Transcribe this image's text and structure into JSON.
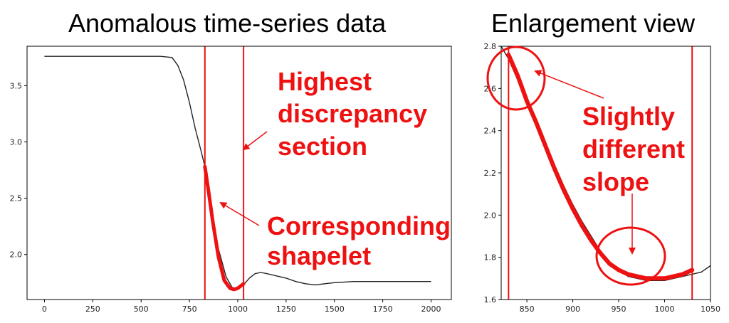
{
  "titles": {
    "left": "Anomalous time-series data",
    "right": "Enlargement view"
  },
  "annotations": {
    "left_upper": [
      "Highest",
      "discrepancy",
      "section"
    ],
    "left_lower": [
      "Corresponding",
      "shapelet"
    ],
    "right": [
      "Slightly",
      "different",
      "slope"
    ]
  },
  "colors": {
    "series": "#222222",
    "highlight": "#ee1111",
    "axis": "#000000"
  },
  "chart_data": [
    {
      "type": "line",
      "title": "Anomalous time-series data",
      "xlabel": "",
      "ylabel": "",
      "xlim": [
        -90,
        2105
      ],
      "ylim": [
        1.6,
        3.85
      ],
      "xticks": [
        0,
        250,
        500,
        750,
        1000,
        1250,
        1500,
        1750,
        2000
      ],
      "yticks": [
        2.0,
        2.5,
        3.0,
        3.5
      ],
      "grid": false,
      "vlines": [
        830,
        1030
      ],
      "series": [
        {
          "x": [
            0,
            100,
            200,
            300,
            400,
            500,
            600,
            660,
            690,
            720,
            750,
            780,
            810,
            830,
            860,
            900,
            940,
            970,
            1000,
            1030,
            1060,
            1090,
            1120,
            1150,
            1200,
            1250,
            1300,
            1350,
            1400,
            1450,
            1500,
            1600,
            1700,
            1800,
            1900,
            2000
          ],
          "y": [
            3.76,
            3.76,
            3.76,
            3.76,
            3.76,
            3.76,
            3.76,
            3.75,
            3.68,
            3.55,
            3.35,
            3.12,
            2.92,
            2.78,
            2.45,
            2.05,
            1.8,
            1.71,
            1.69,
            1.73,
            1.79,
            1.83,
            1.84,
            1.83,
            1.81,
            1.79,
            1.76,
            1.74,
            1.73,
            1.74,
            1.75,
            1.76,
            1.76,
            1.76,
            1.76,
            1.76
          ]
        }
      ],
      "shapelet": {
        "x": [
          830,
          850,
          870,
          900,
          930,
          960,
          980,
          1000,
          1030
        ],
        "y": [
          2.78,
          2.55,
          2.3,
          1.98,
          1.77,
          1.7,
          1.69,
          1.7,
          1.74
        ]
      }
    },
    {
      "type": "line",
      "title": "Enlargement view",
      "xlabel": "",
      "ylabel": "",
      "xlim": [
        822,
        1050
      ],
      "ylim": [
        1.6,
        2.8
      ],
      "xticks": [
        850,
        900,
        950,
        1000,
        1050
      ],
      "yticks": [
        1.6,
        1.8,
        2.0,
        2.2,
        2.4,
        2.6,
        2.8
      ],
      "grid": false,
      "vlines": [
        830,
        1030
      ],
      "series": [
        {
          "x": [
            822,
            830,
            840,
            850,
            860,
            870,
            880,
            890,
            900,
            910,
            920,
            930,
            940,
            950,
            960,
            970,
            980,
            990,
            1000,
            1010,
            1020,
            1030,
            1040,
            1050
          ],
          "y": [
            2.8,
            2.74,
            2.64,
            2.54,
            2.44,
            2.34,
            2.24,
            2.14,
            2.05,
            1.97,
            1.9,
            1.83,
            1.78,
            1.74,
            1.71,
            1.7,
            1.69,
            1.69,
            1.69,
            1.7,
            1.71,
            1.72,
            1.73,
            1.76
          ]
        }
      ],
      "shapelet": {
        "x": [
          830,
          840,
          850,
          860,
          870,
          880,
          890,
          900,
          910,
          920,
          930,
          940,
          950,
          960,
          970,
          980,
          990,
          1000,
          1010,
          1020,
          1030
        ],
        "y": [
          2.76,
          2.66,
          2.54,
          2.44,
          2.33,
          2.22,
          2.12,
          2.03,
          1.95,
          1.88,
          1.82,
          1.77,
          1.74,
          1.72,
          1.71,
          1.7,
          1.7,
          1.7,
          1.71,
          1.72,
          1.74
        ]
      }
    }
  ]
}
